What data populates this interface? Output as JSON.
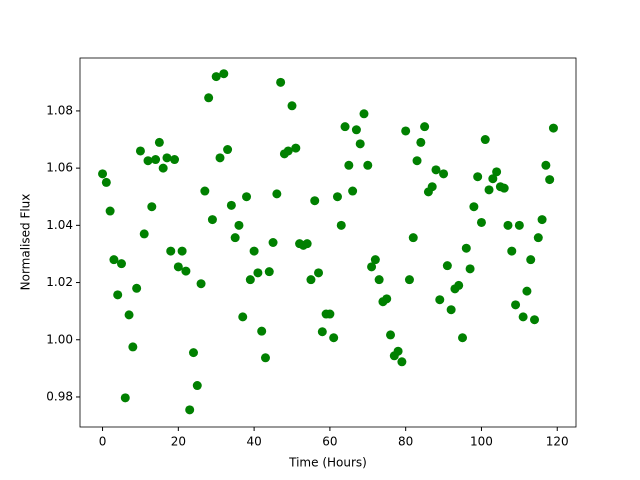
{
  "chart_data": {
    "type": "scatter",
    "xlabel": "Time (Hours)",
    "ylabel": "Normalised Flux",
    "color": "#008000",
    "x": [
      0,
      1,
      2,
      3,
      4,
      5,
      6,
      7,
      8,
      9,
      10,
      11,
      12,
      13,
      14,
      15,
      16,
      17,
      18,
      19,
      20,
      21,
      22,
      23,
      24,
      25,
      26,
      27,
      28,
      29,
      30,
      31,
      32,
      33,
      34,
      35,
      36,
      37,
      38,
      39,
      40,
      41,
      42,
      43,
      44,
      45,
      46,
      47,
      48,
      49,
      50,
      51,
      52,
      53,
      54,
      55,
      56,
      57,
      58,
      59,
      60,
      61,
      62,
      63,
      64,
      65,
      66,
      67,
      68,
      69,
      70,
      71,
      72,
      73,
      74,
      75,
      76,
      77,
      78,
      79,
      80,
      81,
      82,
      83,
      84,
      85,
      86,
      87,
      88,
      89,
      90,
      91,
      92,
      93,
      94,
      95,
      96,
      97,
      98,
      99,
      100,
      101,
      102,
      103,
      104,
      105,
      106,
      107,
      108,
      109,
      110,
      111,
      112,
      113,
      114,
      115,
      116,
      117,
      118,
      119
    ],
    "values": [
      1.058,
      1.055,
      1.045,
      1.028,
      1.0157,
      1.0266,
      0.9797,
      1.0087,
      0.9975,
      1.018,
      1.066,
      1.037,
      1.0626,
      1.0465,
      1.063,
      1.069,
      1.06,
      1.0636,
      1.031,
      1.063,
      1.0255,
      1.031,
      1.024,
      0.9755,
      0.9955,
      0.984,
      1.0196,
      1.052,
      1.0846,
      1.042,
      1.092,
      1.0636,
      1.093,
      1.0665,
      1.047,
      1.0357,
      1.04,
      1.008,
      1.05,
      1.021,
      1.031,
      1.0234,
      1.003,
      0.9937,
      1.0238,
      1.034,
      1.051,
      1.09,
      1.065,
      1.066,
      1.0818,
      1.067,
      1.0336,
      1.033,
      1.0336,
      1.021,
      1.0486,
      1.0234,
      1.0028,
      1.009,
      1.009,
      1.0007,
      1.05,
      1.04,
      1.0745,
      1.061,
      1.052,
      1.0734,
      1.0685,
      1.079,
      1.061,
      1.0255,
      1.028,
      1.021,
      1.0133,
      1.0143,
      1.0017,
      0.9944,
      0.996,
      0.9923,
      1.073,
      1.021,
      1.0357,
      1.0626,
      1.069,
      1.0745,
      1.0517,
      1.0535,
      1.0594,
      1.014,
      1.058,
      1.0259,
      1.0105,
      1.0178,
      1.019,
      1.0007,
      1.032,
      1.0248,
      1.0465,
      1.057,
      1.041,
      1.07,
      1.0524,
      1.0563,
      1.0587,
      1.0535,
      1.053,
      1.04,
      1.031,
      1.0122,
      1.04,
      1.008,
      1.017,
      1.028,
      1.007,
      1.0357,
      1.042,
      1.061,
      1.056,
      1.074
    ],
    "xlim": [
      -5.95,
      124.95
    ],
    "xticks": [
      0,
      20,
      40,
      60,
      80,
      100,
      120
    ],
    "ylim": [
      0.9695,
      1.0985
    ],
    "yticks": [
      0.98,
      {
        "value": 1,
        "label": "1.00"
      },
      1.02,
      1.04,
      1.06,
      1.08
    ],
    "grid": false
  }
}
